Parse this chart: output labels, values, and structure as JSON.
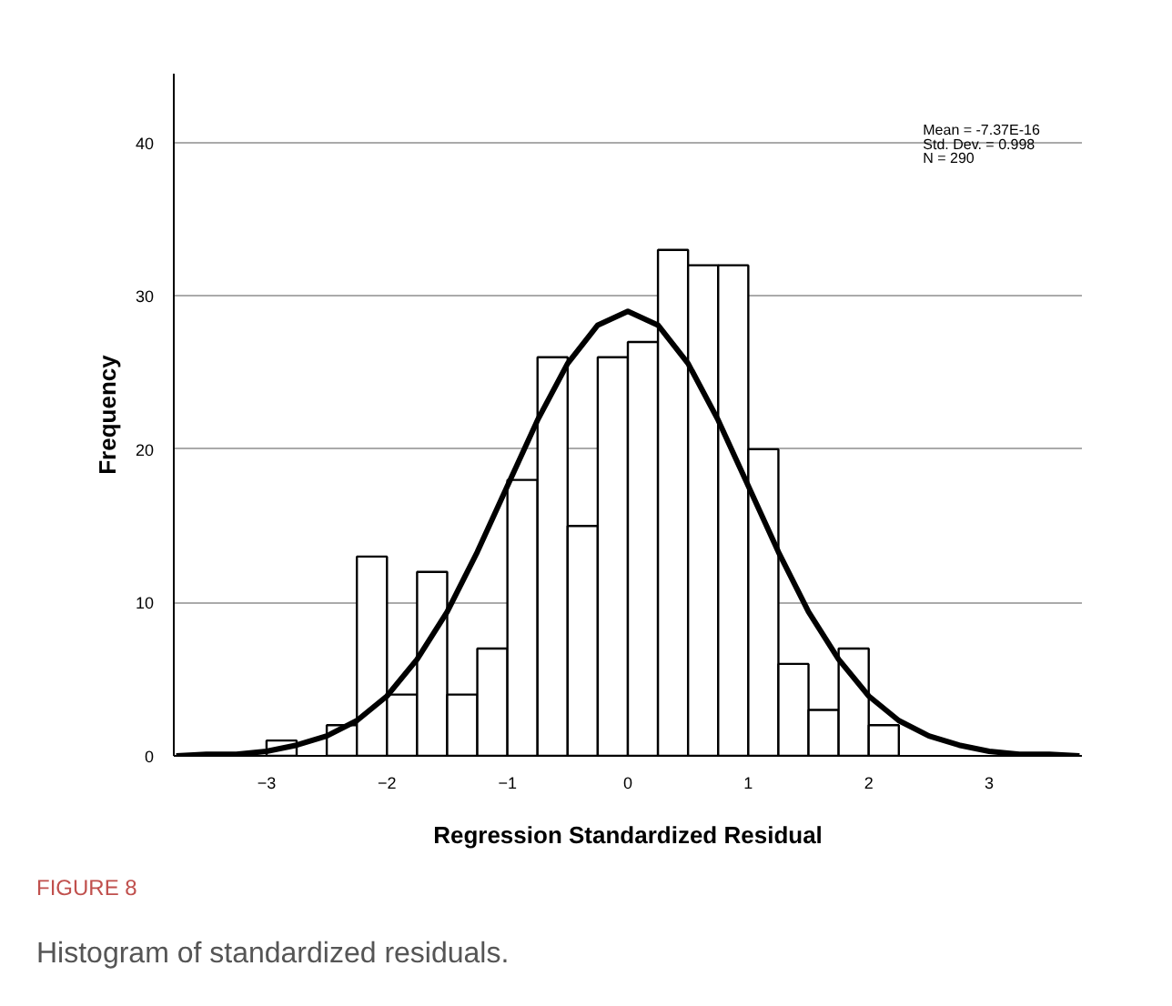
{
  "chart_data": {
    "type": "histogram",
    "xlabel": "Regression Standardized Residual",
    "ylabel": "Frequency",
    "bins": [
      -3.0,
      -2.75,
      -2.5,
      -2.25,
      -2.0,
      -1.75,
      -1.5,
      -1.25,
      -1.0,
      -0.75,
      -0.5,
      -0.25,
      0.0,
      0.25,
      0.5,
      0.75,
      1.0,
      1.25,
      1.5,
      1.75,
      2.0,
      2.25
    ],
    "values": [
      1,
      0,
      2,
      13,
      4,
      12,
      4,
      7,
      18,
      26,
      15,
      26,
      27,
      33,
      32,
      32,
      20,
      6,
      3,
      7,
      2
    ],
    "color": "#ffffff",
    "series": [
      {
        "type": "line",
        "color": "#000000",
        "x": [
          -3.75,
          -3.5,
          -3.25,
          -3.0,
          -2.75,
          -2.5,
          -2.25,
          -2.0,
          -1.75,
          -1.5,
          -1.25,
          -1.0,
          -0.75,
          -0.5,
          -0.25,
          0.0,
          0.25,
          0.5,
          0.75,
          1.0,
          1.25,
          1.5,
          1.75,
          2.0,
          2.25,
          2.5,
          2.75,
          3.0,
          3.25,
          3.5,
          3.75
        ],
        "values": [
          0.0,
          0.1,
          0.1,
          0.3,
          0.7,
          1.3,
          2.3,
          3.9,
          6.3,
          9.4,
          13.3,
          17.6,
          21.9,
          25.6,
          28.1,
          29.0,
          28.1,
          25.6,
          21.9,
          17.6,
          13.3,
          9.4,
          6.3,
          3.9,
          2.3,
          1.3,
          0.7,
          0.3,
          0.1,
          0.1,
          0.0
        ]
      }
    ],
    "xlim": [
      -3.77,
      3.77
    ],
    "xticks": [
      -3,
      -2,
      -1,
      0,
      1,
      2,
      3
    ],
    "ylim": [
      0,
      44.5
    ],
    "yticks": [
      0,
      10,
      20,
      30,
      40
    ],
    "grid": "y",
    "annotations": [
      "Mean = -7.37E-16",
      "Std. Dev. = 0.998",
      "N = 290",
      "FIGURE 8",
      "Histogram of standardized residuals."
    ]
  }
}
